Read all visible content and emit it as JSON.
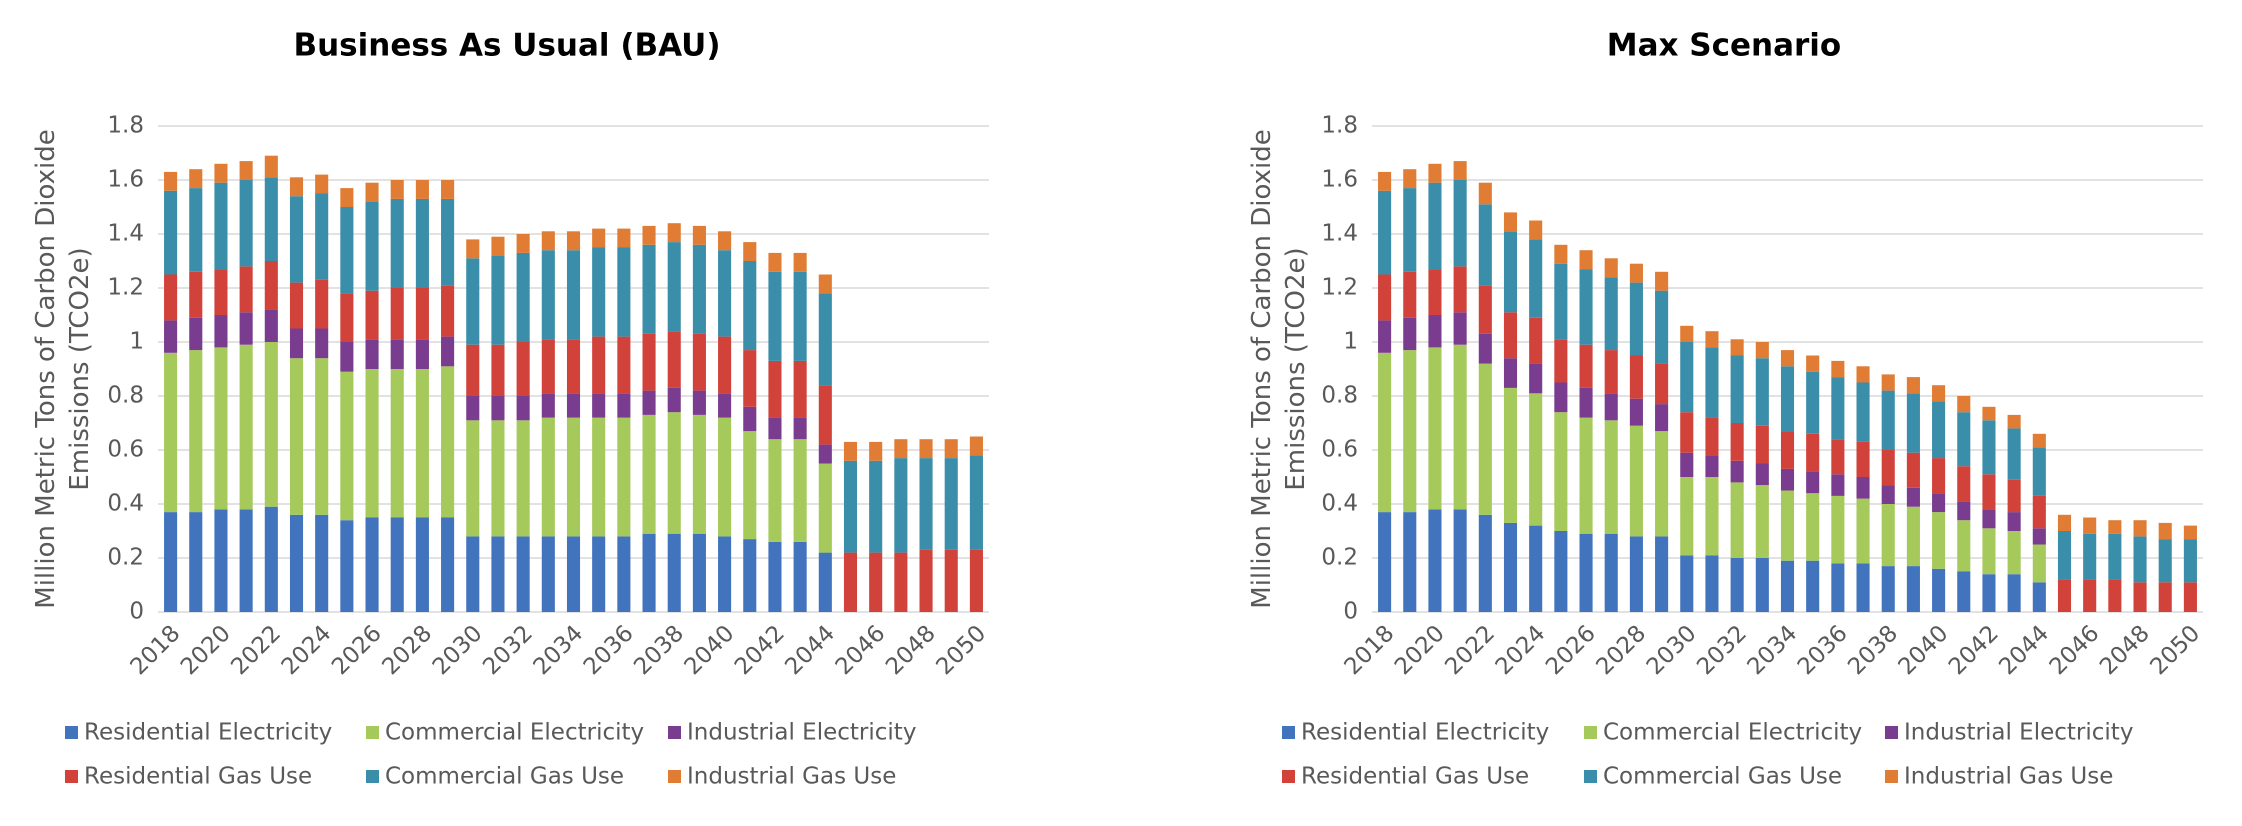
{
  "chart_data": [
    {
      "type": "stacked_bar",
      "title": "Business As Usual (BAU)",
      "ylabel": [
        "Million Metric Tons of Carbon Dioxide",
        "Emissions (TCO2e)"
      ],
      "categories": [
        "2018",
        null,
        "2020",
        null,
        "2022",
        null,
        "2024",
        null,
        "2026",
        null,
        "2028",
        null,
        "2030",
        null,
        "2032",
        null,
        "2034",
        null,
        "2036",
        null,
        "2038",
        null,
        "2040",
        null,
        "2042",
        null,
        "2044",
        null,
        "2046",
        null,
        "2048",
        null,
        "2050"
      ],
      "ylim": [
        0,
        1.8
      ],
      "yticks": [
        0,
        0.2,
        0.4,
        0.6,
        0.8,
        1,
        1.2,
        1.4,
        1.6,
        1.8
      ],
      "grid": true,
      "legend": "bottom",
      "series": [
        {
          "name": "Residential Electricity",
          "color": "#4274bd",
          "values": [
            0.37,
            0.37,
            0.38,
            0.38,
            0.39,
            0.36,
            0.36,
            0.34,
            0.35,
            0.35,
            0.35,
            0.35,
            0.28,
            0.28,
            0.28,
            0.28,
            0.28,
            0.28,
            0.28,
            0.29,
            0.29,
            0.29,
            0.28,
            0.27,
            0.26,
            0.26,
            0.22,
            0,
            0,
            0,
            0,
            0,
            0
          ]
        },
        {
          "name": "Commercial Electricity",
          "color": "#a6c95b",
          "values": [
            0.59,
            0.6,
            0.6,
            0.61,
            0.61,
            0.58,
            0.58,
            0.55,
            0.55,
            0.55,
            0.55,
            0.56,
            0.43,
            0.43,
            0.43,
            0.44,
            0.44,
            0.44,
            0.44,
            0.44,
            0.45,
            0.44,
            0.44,
            0.4,
            0.38,
            0.38,
            0.33,
            0,
            0,
            0,
            0,
            0,
            0
          ]
        },
        {
          "name": "Industrial Electricity",
          "color": "#7a3c8e",
          "values": [
            0.12,
            0.12,
            0.12,
            0.12,
            0.12,
            0.11,
            0.11,
            0.11,
            0.11,
            0.11,
            0.11,
            0.11,
            0.09,
            0.09,
            0.09,
            0.09,
            0.09,
            0.09,
            0.09,
            0.09,
            0.09,
            0.09,
            0.09,
            0.09,
            0.08,
            0.08,
            0.07,
            0,
            0,
            0,
            0,
            0,
            0
          ]
        },
        {
          "name": "Residential Gas Use",
          "color": "#d1433a",
          "values": [
            0.17,
            0.17,
            0.17,
            0.17,
            0.18,
            0.17,
            0.18,
            0.18,
            0.18,
            0.19,
            0.19,
            0.19,
            0.19,
            0.19,
            0.2,
            0.2,
            0.2,
            0.21,
            0.21,
            0.21,
            0.21,
            0.21,
            0.21,
            0.21,
            0.21,
            0.21,
            0.22,
            0.22,
            0.22,
            0.22,
            0.23,
            0.23,
            0.23
          ]
        },
        {
          "name": "Commercial Gas Use",
          "color": "#3b8ea9",
          "values": [
            0.31,
            0.31,
            0.32,
            0.32,
            0.31,
            0.32,
            0.32,
            0.32,
            0.33,
            0.33,
            0.33,
            0.32,
            0.32,
            0.33,
            0.33,
            0.33,
            0.33,
            0.33,
            0.33,
            0.33,
            0.33,
            0.33,
            0.32,
            0.33,
            0.33,
            0.33,
            0.34,
            0.34,
            0.34,
            0.35,
            0.34,
            0.34,
            0.35
          ]
        },
        {
          "name": "Industrial Gas Use",
          "color": "#e07c33",
          "values": [
            0.07,
            0.07,
            0.07,
            0.07,
            0.08,
            0.07,
            0.07,
            0.07,
            0.07,
            0.07,
            0.07,
            0.07,
            0.07,
            0.07,
            0.07,
            0.07,
            0.07,
            0.07,
            0.07,
            0.07,
            0.07,
            0.07,
            0.07,
            0.07,
            0.07,
            0.07,
            0.07,
            0.07,
            0.07,
            0.07,
            0.07,
            0.07,
            0.07
          ]
        }
      ]
    },
    {
      "type": "stacked_bar",
      "title": "Max Scenario",
      "ylabel": [
        "Million Metric Tons of Carbon Dioxide",
        "Emissions (TCO2e)"
      ],
      "categories": [
        "2018",
        null,
        "2020",
        null,
        "2022",
        null,
        "2024",
        null,
        "2026",
        null,
        "2028",
        null,
        "2030",
        null,
        "2032",
        null,
        "2034",
        null,
        "2036",
        null,
        "2038",
        null,
        "2040",
        null,
        "2042",
        null,
        "2044",
        null,
        "2046",
        null,
        "2048",
        null,
        "2050"
      ],
      "ylim": [
        0,
        1.8
      ],
      "yticks": [
        0,
        0.2,
        0.4,
        0.6,
        0.8,
        1,
        1.2,
        1.4,
        1.6,
        1.8
      ],
      "grid": true,
      "legend": "bottom",
      "series": [
        {
          "name": "Residential Electricity",
          "color": "#4274bd",
          "values": [
            0.37,
            0.37,
            0.38,
            0.38,
            0.36,
            0.33,
            0.32,
            0.3,
            0.29,
            0.29,
            0.28,
            0.28,
            0.21,
            0.21,
            0.2,
            0.2,
            0.19,
            0.19,
            0.18,
            0.18,
            0.17,
            0.17,
            0.16,
            0.15,
            0.14,
            0.14,
            0.11,
            0,
            0,
            0,
            0,
            0,
            0
          ]
        },
        {
          "name": "Commercial Electricity",
          "color": "#a6c95b",
          "values": [
            0.59,
            0.6,
            0.6,
            0.61,
            0.56,
            0.5,
            0.49,
            0.44,
            0.43,
            0.42,
            0.41,
            0.39,
            0.29,
            0.29,
            0.28,
            0.27,
            0.26,
            0.25,
            0.25,
            0.24,
            0.23,
            0.22,
            0.21,
            0.19,
            0.17,
            0.16,
            0.14,
            0,
            0,
            0,
            0,
            0,
            0
          ]
        },
        {
          "name": "Industrial Electricity",
          "color": "#7a3c8e",
          "values": [
            0.12,
            0.12,
            0.12,
            0.12,
            0.11,
            0.11,
            0.11,
            0.11,
            0.11,
            0.1,
            0.1,
            0.1,
            0.09,
            0.08,
            0.08,
            0.08,
            0.08,
            0.08,
            0.08,
            0.08,
            0.07,
            0.07,
            0.07,
            0.07,
            0.07,
            0.07,
            0.06,
            0,
            0,
            0,
            0,
            0,
            0
          ]
        },
        {
          "name": "Residential Gas Use",
          "color": "#d1433a",
          "values": [
            0.17,
            0.17,
            0.17,
            0.17,
            0.18,
            0.17,
            0.17,
            0.16,
            0.16,
            0.16,
            0.16,
            0.15,
            0.15,
            0.14,
            0.14,
            0.14,
            0.14,
            0.14,
            0.13,
            0.13,
            0.13,
            0.13,
            0.13,
            0.13,
            0.13,
            0.12,
            0.12,
            0.12,
            0.12,
            0.12,
            0.11,
            0.11,
            0.11
          ]
        },
        {
          "name": "Commercial Gas Use",
          "color": "#3b8ea9",
          "values": [
            0.31,
            0.31,
            0.32,
            0.32,
            0.3,
            0.3,
            0.29,
            0.28,
            0.28,
            0.27,
            0.27,
            0.27,
            0.26,
            0.26,
            0.25,
            0.25,
            0.24,
            0.23,
            0.23,
            0.22,
            0.22,
            0.22,
            0.21,
            0.2,
            0.2,
            0.19,
            0.18,
            0.18,
            0.17,
            0.17,
            0.17,
            0.16,
            0.16
          ]
        },
        {
          "name": "Industrial Gas Use",
          "color": "#e07c33",
          "values": [
            0.07,
            0.07,
            0.07,
            0.07,
            0.08,
            0.07,
            0.07,
            0.07,
            0.07,
            0.07,
            0.07,
            0.07,
            0.06,
            0.06,
            0.06,
            0.06,
            0.06,
            0.06,
            0.06,
            0.06,
            0.06,
            0.06,
            0.06,
            0.06,
            0.05,
            0.05,
            0.05,
            0.06,
            0.06,
            0.05,
            0.06,
            0.06,
            0.05
          ]
        }
      ]
    }
  ]
}
